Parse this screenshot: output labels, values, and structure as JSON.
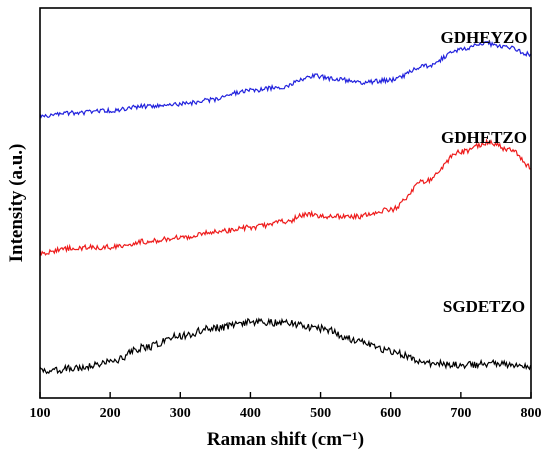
{
  "chart_data": {
    "type": "line",
    "xlabel": "Raman shift (cm⁻¹)",
    "ylabel": "Intensity (a.u.)",
    "xlim": [
      100,
      800
    ],
    "xticks": [
      100,
      200,
      300,
      400,
      500,
      600,
      700,
      800
    ],
    "yticks_shown": false,
    "grid": false,
    "legend": "none; series names printed beside curves",
    "series": [
      {
        "name": "GDHEYZO",
        "color": "#2222dd",
        "x": [
          100,
          150,
          200,
          250,
          300,
          350,
          370,
          400,
          450,
          470,
          490,
          520,
          560,
          600,
          650,
          700,
          730,
          760,
          800
        ],
        "y": [
          0.723,
          0.731,
          0.737,
          0.748,
          0.754,
          0.765,
          0.781,
          0.789,
          0.798,
          0.817,
          0.826,
          0.818,
          0.809,
          0.815,
          0.852,
          0.893,
          0.91,
          0.902,
          0.881
        ]
      },
      {
        "name": "GDHETZO",
        "color": "#ee1c1c",
        "x": [
          100,
          150,
          200,
          250,
          300,
          350,
          400,
          450,
          480,
          500,
          550,
          600,
          650,
          700,
          740,
          770,
          800
        ],
        "y": [
          0.372,
          0.385,
          0.387,
          0.401,
          0.412,
          0.426,
          0.437,
          0.452,
          0.472,
          0.466,
          0.465,
          0.483,
          0.557,
          0.631,
          0.655,
          0.636,
          0.593
        ]
      },
      {
        "name": "SGDETZO",
        "color": "#000000",
        "x": [
          100,
          150,
          200,
          250,
          300,
          350,
          400,
          450,
          500,
          550,
          600,
          650,
          700,
          750,
          800
        ],
        "y": [
          0.07,
          0.075,
          0.093,
          0.13,
          0.16,
          0.18,
          0.195,
          0.193,
          0.178,
          0.15,
          0.12,
          0.09,
          0.085,
          0.088,
          0.083
        ]
      }
    ]
  }
}
